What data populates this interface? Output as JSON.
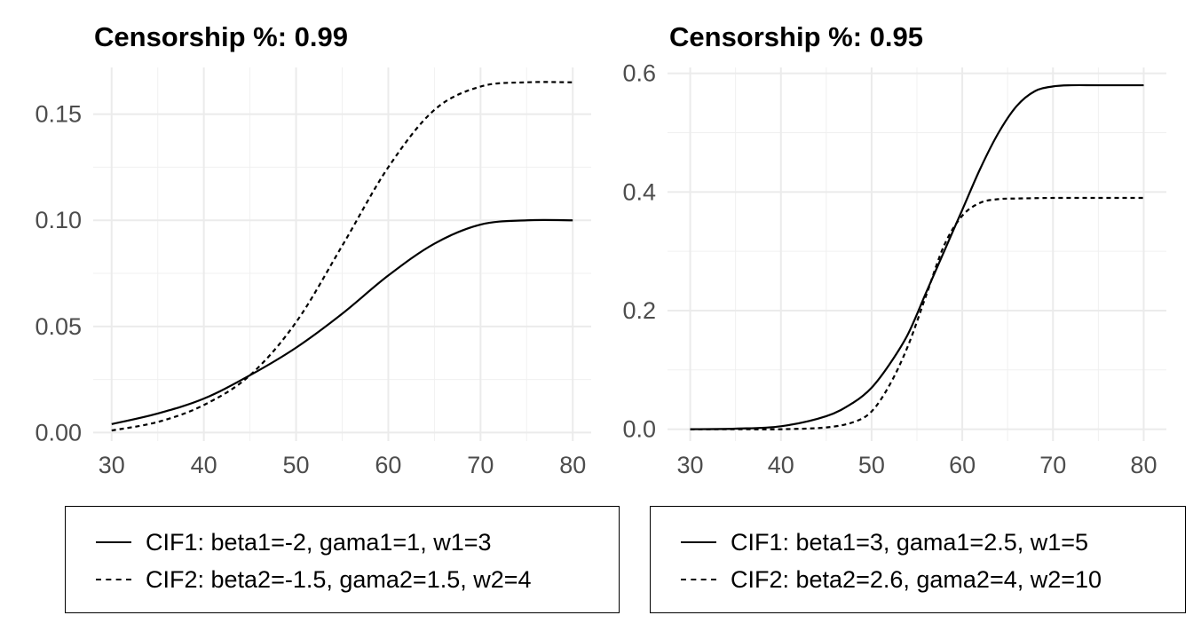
{
  "chart_data": [
    {
      "type": "line",
      "title": "Censorship %: 0.99",
      "xlabel": "",
      "ylabel": "",
      "xlim": [
        28,
        82
      ],
      "ylim": [
        -0.004,
        0.172
      ],
      "x_ticks": [
        30,
        40,
        50,
        60,
        70,
        80
      ],
      "y_ticks": [
        0.0,
        0.05,
        0.1,
        0.15
      ],
      "y_tick_labels": [
        "0.00",
        "0.05",
        "0.10",
        "0.15"
      ],
      "grid": true,
      "legend": {
        "position": "bottom",
        "entries": [
          {
            "label": "CIF1: beta1=-2, gama1=1, w1=3",
            "style": "solid"
          },
          {
            "label": "CIF2: beta2=-1.5, gama2=1.5, w2=4",
            "style": "dashed"
          }
        ]
      },
      "series": [
        {
          "style": "solid",
          "x": [
            30,
            35,
            40,
            45,
            50,
            55,
            60,
            65,
            70,
            75,
            80
          ],
          "y": [
            0.004,
            0.009,
            0.016,
            0.027,
            0.04,
            0.056,
            0.074,
            0.089,
            0.098,
            0.1,
            0.1
          ]
        },
        {
          "style": "dashed",
          "x": [
            30,
            35,
            40,
            45,
            50,
            55,
            60,
            65,
            70,
            75,
            80
          ],
          "y": [
            0.001,
            0.005,
            0.013,
            0.027,
            0.052,
            0.088,
            0.125,
            0.152,
            0.163,
            0.165,
            0.165
          ]
        }
      ]
    },
    {
      "type": "line",
      "title": "Censorship %: 0.95",
      "xlabel": "",
      "ylabel": "",
      "xlim": [
        27.5,
        82.5
      ],
      "ylim": [
        -0.02,
        0.61
      ],
      "x_ticks": [
        30,
        40,
        50,
        60,
        70,
        80
      ],
      "y_ticks": [
        0.0,
        0.2,
        0.4,
        0.6
      ],
      "y_tick_labels": [
        "0.0",
        "0.2",
        "0.4",
        "0.6"
      ],
      "grid": true,
      "legend": {
        "position": "bottom",
        "entries": [
          {
            "label": "CIF1: beta1=3, gama1=2.5, w1=5",
            "style": "solid"
          },
          {
            "label": "CIF2: beta2=2.6, gama2=4, w2=10",
            "style": "dashed"
          }
        ]
      },
      "series": [
        {
          "style": "solid",
          "x": [
            30,
            35,
            40,
            45,
            48,
            50,
            52,
            54,
            56,
            58,
            60,
            62,
            64,
            66,
            68,
            70,
            72,
            75,
            80
          ],
          "y": [
            0.0,
            0.001,
            0.005,
            0.022,
            0.045,
            0.07,
            0.11,
            0.16,
            0.23,
            0.3,
            0.37,
            0.44,
            0.5,
            0.545,
            0.57,
            0.578,
            0.58,
            0.58,
            0.58
          ]
        },
        {
          "style": "dashed",
          "x": [
            30,
            35,
            40,
            45,
            48,
            50,
            52,
            54,
            56,
            58,
            60,
            62,
            64,
            66,
            70,
            75,
            80
          ],
          "y": [
            0.0,
            0.0,
            0.0,
            0.003,
            0.012,
            0.03,
            0.075,
            0.14,
            0.225,
            0.31,
            0.36,
            0.382,
            0.388,
            0.389,
            0.39,
            0.39,
            0.39
          ]
        }
      ]
    }
  ]
}
